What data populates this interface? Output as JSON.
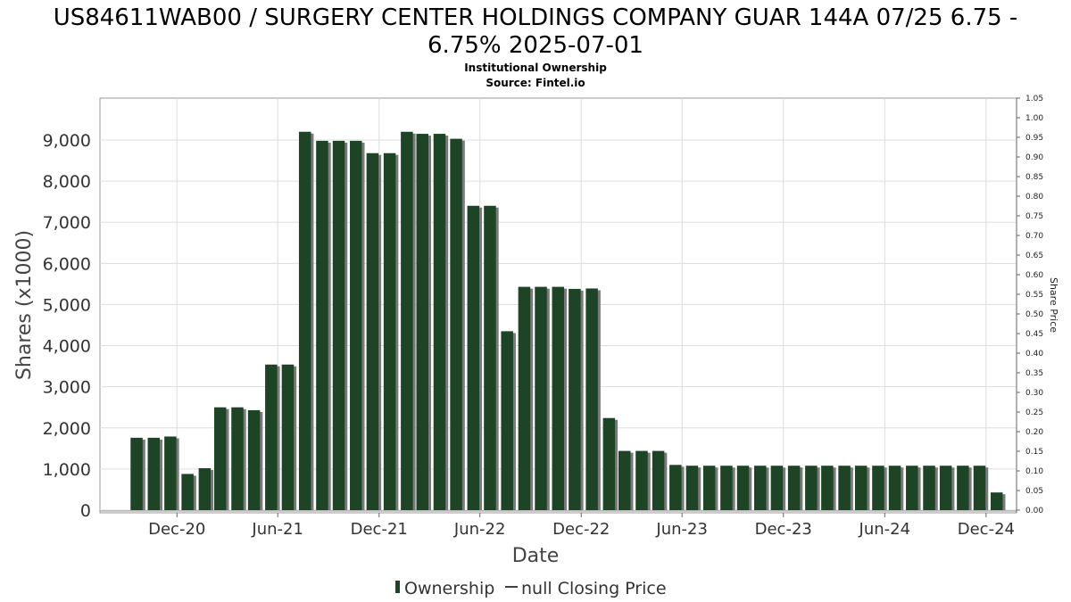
{
  "chart_data": {
    "type": "bar",
    "title_line1": "US84611WAB00 / SURGERY CENTER HOLDINGS COMPANY GUAR 144A 07/25 6.75 -",
    "title_line2": "6.75% 2025-07-01",
    "subtitle_line1": "Institutional Ownership",
    "subtitle_line2": "Source: Fintel.io",
    "xlabel": "Date",
    "ylabel": "Shares (x1000)",
    "y2label": "Share Price",
    "x_range": [
      "2020-07-15",
      "2025-01-25"
    ],
    "ylim": [
      0,
      9650
    ],
    "y_ticks": [
      0,
      1000,
      2000,
      3000,
      4000,
      5000,
      6000,
      7000,
      8000,
      9000
    ],
    "y_tick_labels": [
      "0",
      "1,000",
      "2,000",
      "3,000",
      "4,000",
      "5,000",
      "6,000",
      "7,000",
      "8,000",
      "9,000"
    ],
    "y2lim": [
      0,
      1.05
    ],
    "y2_ticks": [
      0,
      0.05,
      0.1,
      0.15,
      0.2,
      0.25,
      0.3,
      0.35,
      0.4,
      0.45,
      0.5,
      0.55,
      0.6,
      0.65,
      0.7,
      0.75,
      0.8,
      0.85,
      0.9,
      0.95,
      1.0,
      1.05
    ],
    "y2_tick_labels": [
      "0.00",
      "0.05",
      "0.10",
      "0.15",
      "0.20",
      "0.25",
      "0.30",
      "0.35",
      "0.40",
      "0.45",
      "0.50",
      "0.55",
      "0.60",
      "0.65",
      "0.70",
      "0.75",
      "0.80",
      "0.85",
      "0.90",
      "0.95",
      "1.00",
      "1.05"
    ],
    "x_ticks": [
      {
        "date": "2020-12-01",
        "label": "Dec-20"
      },
      {
        "date": "2021-06-01",
        "label": "Jun-21"
      },
      {
        "date": "2021-12-01",
        "label": "Dec-21"
      },
      {
        "date": "2022-06-01",
        "label": "Jun-22"
      },
      {
        "date": "2022-12-01",
        "label": "Dec-22"
      },
      {
        "date": "2023-06-01",
        "label": "Jun-23"
      },
      {
        "date": "2023-12-01",
        "label": "Dec-23"
      },
      {
        "date": "2024-06-01",
        "label": "Jun-24"
      },
      {
        "date": "2024-12-01",
        "label": "Dec-24"
      }
    ],
    "grid": true,
    "legend_position": "bottom",
    "series": [
      {
        "name": "Ownership",
        "color": "#1e4426",
        "shadow_color": "#7a7a7a",
        "x": [
          "2020-09-30",
          "2020-10-31",
          "2020-11-30",
          "2020-12-31",
          "2021-01-31",
          "2021-02-28",
          "2021-03-31",
          "2021-04-30",
          "2021-05-31",
          "2021-06-30",
          "2021-07-31",
          "2021-08-31",
          "2021-09-30",
          "2021-10-31",
          "2021-11-30",
          "2021-12-31",
          "2022-01-31",
          "2022-02-28",
          "2022-03-31",
          "2022-04-30",
          "2022-05-31",
          "2022-06-30",
          "2022-07-31",
          "2022-08-31",
          "2022-09-30",
          "2022-10-31",
          "2022-11-30",
          "2022-12-31",
          "2023-01-31",
          "2023-02-28",
          "2023-03-31",
          "2023-04-30",
          "2023-05-31",
          "2023-06-30",
          "2023-07-31",
          "2023-08-31",
          "2023-09-30",
          "2023-10-31",
          "2023-11-30",
          "2023-12-31",
          "2024-01-31",
          "2024-02-29",
          "2024-03-31",
          "2024-04-30",
          "2024-05-31",
          "2024-06-30",
          "2024-07-31",
          "2024-08-31",
          "2024-09-30",
          "2024-10-31",
          "2024-11-30",
          "2024-12-31"
        ],
        "values": [
          1760,
          1760,
          1790,
          880,
          1020,
          2500,
          2500,
          2430,
          3540,
          3540,
          9200,
          8980,
          8980,
          8980,
          8680,
          8680,
          9200,
          9150,
          9150,
          9030,
          7400,
          7400,
          4350,
          5430,
          5430,
          5430,
          5380,
          5390,
          2240,
          1440,
          1440,
          1440,
          1100,
          1080,
          1080,
          1080,
          1080,
          1080,
          1080,
          1080,
          1080,
          1080,
          1080,
          1080,
          1080,
          1080,
          1080,
          1080,
          1080,
          1080,
          1080,
          430
        ]
      },
      {
        "name": "null Closing Price",
        "color": "#000000",
        "values": []
      }
    ]
  }
}
